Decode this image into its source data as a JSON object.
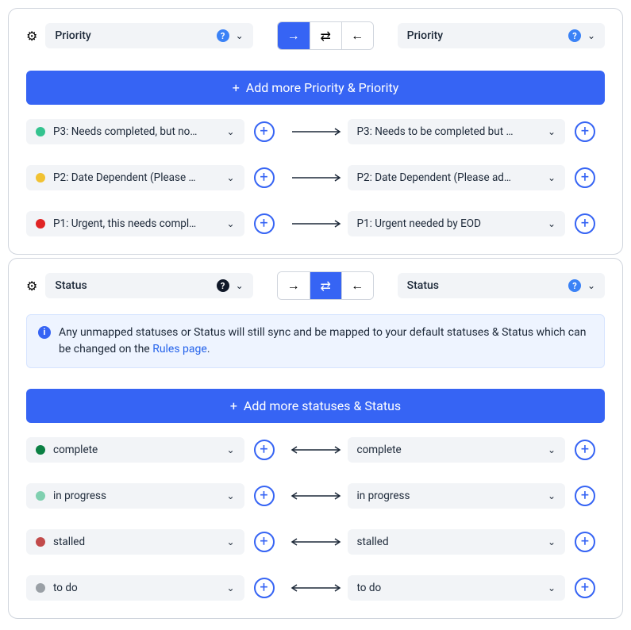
{
  "panels": [
    {
      "title_left": "Priority",
      "help_left": "blue",
      "title_right": "Priority",
      "help_right": "blue",
      "active_dir": 0,
      "add_label": "Add more Priority & Priority",
      "row_arrow": "right",
      "info": null,
      "rows": [
        {
          "left": "P3: Needs completed, but no…",
          "left_dot": "#34c38f",
          "right": "P3: Needs to be completed but …",
          "right_dot": null
        },
        {
          "left": "P2: Date Dependent (Please …",
          "left_dot": "#f1c232",
          "right": "P2: Date Dependent (Please ad…",
          "right_dot": null
        },
        {
          "left": "P1: Urgent, this needs compl…",
          "left_dot": "#e02424",
          "right": "P1: Urgent needed by EOD",
          "right_dot": null
        }
      ]
    },
    {
      "title_left": "Status",
      "help_left": "dark",
      "title_right": "Status",
      "help_right": "blue",
      "active_dir": 1,
      "add_label": "Add more statuses & Status",
      "row_arrow": "both",
      "info": {
        "text_before": "Any unmapped statuses or Status will still sync and be mapped to your default statuses & Status which can be changed on the ",
        "link": "Rules page",
        "text_after": "."
      },
      "rows": [
        {
          "left": "complete",
          "left_dot": "#0b8043",
          "right": "complete",
          "right_dot": null
        },
        {
          "left": "in progress",
          "left_dot": "#80d0b0",
          "right": "in progress",
          "right_dot": null
        },
        {
          "left": "stalled",
          "left_dot": "#c24b4b",
          "right": "stalled",
          "right_dot": null
        },
        {
          "left": "to do",
          "left_dot": "#9aa0a6",
          "right": "to do",
          "right_dot": null
        }
      ]
    }
  ],
  "icons": {
    "gear": "⚙",
    "chev": "⌄",
    "plus": "+",
    "info": "i",
    "help": "?"
  },
  "dir_icons": [
    "→",
    "⇄",
    "←"
  ]
}
